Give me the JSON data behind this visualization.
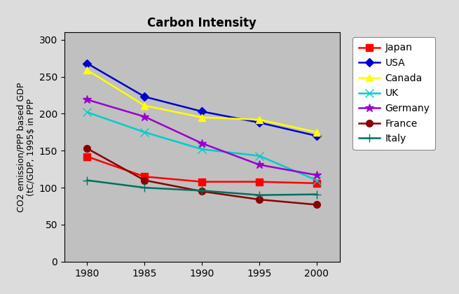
{
  "title": "Carbon Intensity",
  "ylabel": "CO2 emission/PPP based GDP\n(tC/GDP, 1995$ in PPP",
  "years": [
    1980,
    1985,
    1990,
    1995,
    2000
  ],
  "series": [
    {
      "name": "Japan",
      "values": [
        142,
        115,
        108,
        108,
        106
      ],
      "color": "#FF0000",
      "marker": "s",
      "linewidth": 1.8,
      "markersize": 7
    },
    {
      "name": "USA",
      "values": [
        268,
        223,
        203,
        188,
        170
      ],
      "color": "#0000CC",
      "marker": "D",
      "linewidth": 1.8,
      "markersize": 6
    },
    {
      "name": "Canada",
      "values": [
        259,
        211,
        195,
        192,
        175
      ],
      "color": "#FFFF00",
      "marker": "^",
      "linewidth": 1.8,
      "markersize": 7
    },
    {
      "name": "UK",
      "values": [
        202,
        175,
        152,
        143,
        110
      ],
      "color": "#00CCCC",
      "marker": "x",
      "linewidth": 1.8,
      "markersize": 8
    },
    {
      "name": "Germany",
      "values": [
        219,
        196,
        160,
        131,
        117
      ],
      "color": "#9900CC",
      "marker": "*",
      "linewidth": 1.8,
      "markersize": 9
    },
    {
      "name": "France",
      "values": [
        153,
        110,
        95,
        84,
        77
      ],
      "color": "#8B0000",
      "marker": "o",
      "linewidth": 1.8,
      "markersize": 7
    },
    {
      "name": "Italy",
      "values": [
        110,
        100,
        96,
        90,
        91
      ],
      "color": "#007060",
      "marker": "+",
      "linewidth": 1.8,
      "markersize": 8
    }
  ],
  "xlim": [
    1978,
    2002
  ],
  "ylim": [
    0,
    310
  ],
  "yticks": [
    0,
    50,
    100,
    150,
    200,
    250,
    300
  ],
  "xticks": [
    1980,
    1985,
    1990,
    1995,
    2000
  ],
  "plot_bg": "#C0C0C0",
  "fig_bg": "#DCDCDC",
  "title_fontsize": 12,
  "axis_fontsize": 9,
  "tick_fontsize": 10,
  "legend_fontsize": 10
}
